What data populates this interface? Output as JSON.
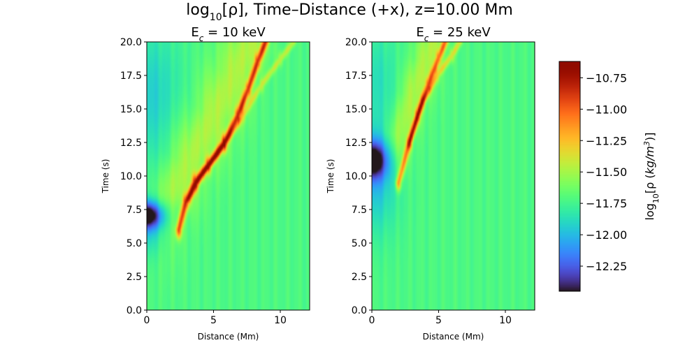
{
  "figure": {
    "title_html": "log<tspan baseline-shift=\"sub\" font-size=\"14\">10</tspan>[ρ], Time–Distance (+x), z=10.00 Mm",
    "title_text": "log10[ρ], Time–Distance (+x), z=10.00 Mm"
  },
  "colormap": "turbo",
  "colorbar": {
    "label": "log10[ρ (kg/m3)]",
    "range": [
      -12.45,
      -10.62
    ],
    "ticks": [
      -12.25,
      -12.0,
      -11.75,
      -11.5,
      -11.25,
      -11.0,
      -10.75
    ],
    "tick_labels": [
      "−12.25",
      "−12.00",
      "−11.75",
      "−11.50",
      "−11.25",
      "−11.00",
      "−10.75"
    ]
  },
  "chart_data": [
    {
      "type": "heatmap",
      "title": "Ec = 10 keV",
      "xlabel": "Distance (Mm)",
      "ylabel": "Time (s)",
      "xlim": [
        0,
        12.2
      ],
      "ylim": [
        0,
        20
      ],
      "x_ticks": [
        0,
        5,
        10
      ],
      "y_ticks": [
        0.0,
        2.5,
        5.0,
        7.5,
        10.0,
        12.5,
        15.0,
        17.5,
        20.0
      ],
      "x_tick_labels": [
        "0",
        "5",
        "10"
      ],
      "y_tick_labels": [
        "0.0",
        "2.5",
        "5.0",
        "7.5",
        "10.0",
        "12.5",
        "15.0",
        "17.5",
        "20.0"
      ],
      "background": -11.72,
      "features": [
        {
          "kind": "depression",
          "x": 0.0,
          "t": 7.1,
          "width_x": 1.3,
          "width_t": 1.0,
          "amp": -0.75
        },
        {
          "kind": "depression",
          "x": 0.0,
          "t": 6.3,
          "width_x": 1.8,
          "width_t": 2.2,
          "amp": -0.3
        },
        {
          "kind": "depression",
          "x": 0.0,
          "t": 16.0,
          "width_x": 2.5,
          "width_t": 5.0,
          "amp": -0.22
        },
        {
          "kind": "front",
          "points": [
            [
              2.4,
              6.0
            ],
            [
              2.9,
              8.0
            ],
            [
              3.6,
              9.5
            ],
            [
              4.6,
              10.8
            ],
            [
              5.8,
              12.5
            ],
            [
              6.8,
              14.5
            ],
            [
              7.6,
              16.5
            ],
            [
              8.3,
              18.5
            ],
            [
              8.9,
              20.0
            ]
          ],
          "amp": 0.75,
          "width": 0.22
        },
        {
          "kind": "front",
          "points": [
            [
              3.2,
              8.3
            ],
            [
              4.2,
              10.2
            ],
            [
              5.8,
              12.3
            ],
            [
              7.2,
              14.5
            ],
            [
              8.6,
              16.8
            ],
            [
              10.0,
              18.7
            ],
            [
              11.0,
              20.0
            ]
          ],
          "amp": 0.28,
          "width": 0.18
        },
        {
          "kind": "broad",
          "points": [
            [
              1.5,
              8.0
            ],
            [
              3.0,
              11.0
            ],
            [
              5.0,
              14.5
            ],
            [
              6.5,
              17.5
            ],
            [
              7.8,
              20.0
            ]
          ],
          "amp": 0.25,
          "width": 1.3
        }
      ]
    },
    {
      "type": "heatmap",
      "title": "Ec = 25 keV",
      "xlabel": "Distance (Mm)",
      "ylabel": "Time (s)",
      "xlim": [
        0,
        12.2
      ],
      "ylim": [
        0,
        20
      ],
      "x_ticks": [
        0,
        5,
        10
      ],
      "y_ticks": [
        0.0,
        2.5,
        5.0,
        7.5,
        10.0,
        12.5,
        15.0,
        17.5,
        20.0
      ],
      "x_tick_labels": [
        "0",
        "5",
        "10"
      ],
      "y_tick_labels": [
        "0.0",
        "2.5",
        "5.0",
        "7.5",
        "10.0",
        "12.5",
        "15.0",
        "17.5",
        "20.0"
      ],
      "background": -11.72,
      "features": [
        {
          "kind": "depression",
          "x": 0.0,
          "t": 11.2,
          "width_x": 1.2,
          "width_t": 1.4,
          "amp": -0.7
        },
        {
          "kind": "depression",
          "x": 0.0,
          "t": 10.0,
          "width_x": 1.8,
          "width_t": 4.0,
          "amp": -0.3
        },
        {
          "kind": "depression",
          "x": 0.0,
          "t": 17.5,
          "width_x": 2.0,
          "width_t": 3.5,
          "amp": -0.15
        },
        {
          "kind": "front",
          "points": [
            [
              2.0,
              9.5
            ],
            [
              2.8,
              12.5
            ],
            [
              3.4,
              14.5
            ],
            [
              4.2,
              16.8
            ],
            [
              5.0,
              18.8
            ],
            [
              5.5,
              20.0
            ]
          ],
          "amp": 0.6,
          "width": 0.2
        },
        {
          "kind": "front",
          "points": [
            [
              2.8,
              12.5
            ],
            [
              3.8,
              15.5
            ],
            [
              4.9,
              17.5
            ],
            [
              6.0,
              19.0
            ],
            [
              6.6,
              20.0
            ]
          ],
          "amp": 0.35,
          "width": 0.18
        },
        {
          "kind": "broad",
          "points": [
            [
              2.0,
              13.0
            ],
            [
              3.0,
              16.0
            ],
            [
              4.0,
              18.5
            ],
            [
              4.6,
              20.0
            ]
          ],
          "amp": 0.25,
          "width": 0.9
        }
      ]
    }
  ]
}
